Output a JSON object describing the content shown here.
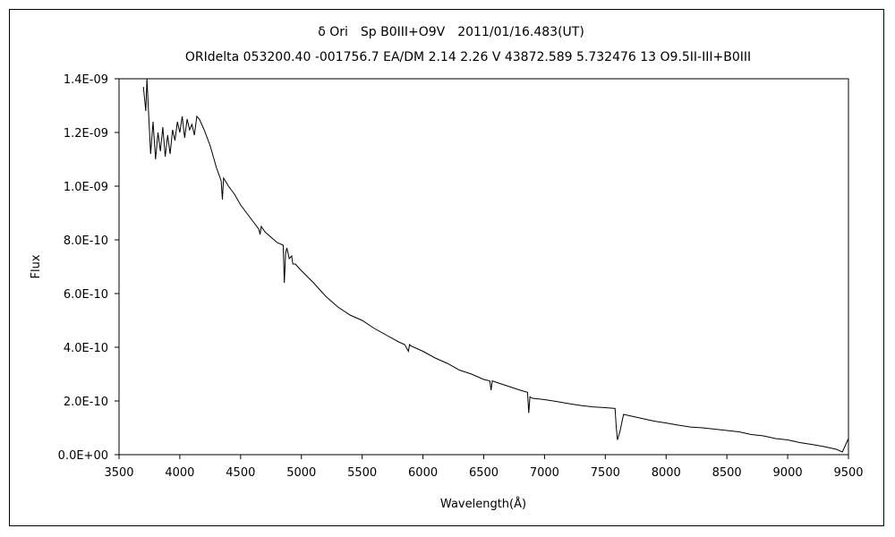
{
  "chart_data": {
    "type": "line",
    "title": "δ Ori　Sp B0III+O9V　2011/01/16.483(UT)",
    "subtitle": "ORIdelta 053200.40 -001756.7 EA/DM 2.14 2.26 V 43872.589 5.732476 13 O9.5II-III+B0III",
    "xlabel": "Wavelength(Å)",
    "ylabel": "Flux",
    "xlim": [
      3500,
      9500
    ],
    "ylim": [
      0,
      1.4e-09
    ],
    "x_ticks": [
      "3500",
      "4000",
      "4500",
      "5000",
      "5500",
      "6000",
      "6500",
      "7000",
      "7500",
      "8000",
      "8500",
      "9000",
      "9500"
    ],
    "y_ticks": [
      "0.0E+00",
      "2.0E-10",
      "4.0E-10",
      "6.0E-10",
      "8.0E-10",
      "1.0E-09",
      "1.2E-09",
      "1.4E-09"
    ],
    "grid": false,
    "legend": "none",
    "line_color": "#000000",
    "series": [
      {
        "x": [
          3700,
          3720,
          3730,
          3740,
          3760,
          3780,
          3800,
          3820,
          3840,
          3860,
          3880,
          3900,
          3920,
          3940,
          3960,
          3980,
          4000,
          4020,
          4040,
          4060,
          4080,
          4100,
          4120,
          4140,
          4160,
          4200,
          4250,
          4300,
          4340,
          4350,
          4360,
          4400,
          4450,
          4500,
          4550,
          4600,
          4650,
          4660,
          4670,
          4700,
          4750,
          4800,
          4850,
          4860,
          4870,
          4880,
          4900,
          4920,
          4930,
          4950,
          5000,
          5100,
          5200,
          5300,
          5400,
          5500,
          5600,
          5700,
          5800,
          5850,
          5880,
          5890,
          5900,
          6000,
          6100,
          6200,
          6300,
          6400,
          6500,
          6550,
          6560,
          6570,
          6600,
          6700,
          6800,
          6860,
          6870,
          6880,
          6900,
          7000,
          7100,
          7200,
          7300,
          7400,
          7500,
          7580,
          7590,
          7600,
          7620,
          7650,
          7700,
          7800,
          7900,
          8000,
          8100,
          8200,
          8300,
          8400,
          8500,
          8600,
          8700,
          8800,
          8900,
          9000,
          9100,
          9200,
          9300,
          9350,
          9400,
          9450,
          9500
        ],
        "y": [
          1.37e-09,
          1.28e-09,
          1.4e-09,
          1.3e-09,
          1.12e-09,
          1.24e-09,
          1.1e-09,
          1.2e-09,
          1.13e-09,
          1.22e-09,
          1.11e-09,
          1.19e-09,
          1.12e-09,
          1.21e-09,
          1.17e-09,
          1.24e-09,
          1.2e-09,
          1.26e-09,
          1.18e-09,
          1.25e-09,
          1.21e-09,
          1.23e-09,
          1.19e-09,
          1.26e-09,
          1.25e-09,
          1.21e-09,
          1.15e-09,
          1.07e-09,
          1.02e-09,
          9.5e-10,
          1.03e-09,
          1e-09,
          9.7e-10,
          9.3e-10,
          9e-10,
          8.7e-10,
          8.4e-10,
          8.2e-10,
          8.5e-10,
          8.3e-10,
          8.1e-10,
          7.9e-10,
          7.8e-10,
          6.4e-10,
          7.5e-10,
          7.7e-10,
          7.3e-10,
          7.4e-10,
          7.1e-10,
          7.1e-10,
          6.85e-10,
          6.4e-10,
          5.9e-10,
          5.5e-10,
          5.2e-10,
          5e-10,
          4.7e-10,
          4.45e-10,
          4.2e-10,
          4.1e-10,
          3.85e-10,
          4.1e-10,
          4.05e-10,
          3.85e-10,
          3.6e-10,
          3.4e-10,
          3.15e-10,
          3e-10,
          2.8e-10,
          2.75e-10,
          2.4e-10,
          2.75e-10,
          2.7e-10,
          2.55e-10,
          2.4e-10,
          2.32e-10,
          1.55e-10,
          2.15e-10,
          2.1e-10,
          2.05e-10,
          1.98e-10,
          1.9e-10,
          1.83e-10,
          1.78e-10,
          1.75e-10,
          1.72e-10,
          1e-10,
          5.5e-11,
          8.5e-11,
          1.5e-10,
          1.45e-10,
          1.35e-10,
          1.25e-10,
          1.18e-10,
          1.1e-10,
          1.03e-10,
          1e-10,
          9.5e-11,
          9e-11,
          8.5e-11,
          7.5e-11,
          7e-11,
          6e-11,
          5.5e-11,
          4.5e-11,
          3.8e-11,
          3e-11,
          2.5e-11,
          2e-11,
          1e-11,
          6e-11
        ]
      }
    ]
  }
}
